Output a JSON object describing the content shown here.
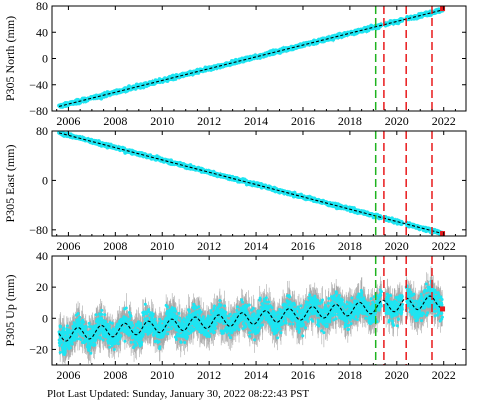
{
  "footer": "Plot Last Updated:   Sunday, January 30, 2022 08:22:43 PST",
  "colors": {
    "data": "#1ee5f2",
    "errorbar": "#a9a9a9",
    "model": "#000000",
    "green_line": "#1fb31f",
    "red_line": "#e8191b",
    "last_point": "#e8191b"
  },
  "chart_data": [
    {
      "type": "scatter",
      "ylabel": "P305 North (mm)",
      "xlim": [
        2005.3,
        2022.95
      ],
      "ylim": [
        -80,
        80
      ],
      "xticks": [
        2006,
        2008,
        2010,
        2012,
        2014,
        2016,
        2018,
        2020,
        2022
      ],
      "yticks": [
        -80,
        -40,
        0,
        40,
        80
      ],
      "trend": {
        "start": [
          2005.6,
          -73
        ],
        "end": [
          2021.95,
          74
        ]
      },
      "noise_mm": 2,
      "last_point": [
        2021.95,
        76
      ],
      "vertical_lines": {
        "green": [
          2019.1
        ],
        "red": [
          2019.45,
          2020.4,
          2021.5
        ]
      }
    },
    {
      "type": "scatter",
      "ylabel": "P305 East (mm)",
      "xlim": [
        2005.3,
        2022.95
      ],
      "ylim": [
        -90,
        80
      ],
      "xticks": [
        2006,
        2008,
        2010,
        2012,
        2014,
        2016,
        2018,
        2020,
        2022
      ],
      "yticks": [
        -80,
        0,
        80
      ],
      "trend": {
        "start": [
          2005.6,
          77
        ],
        "end": [
          2021.95,
          -86
        ]
      },
      "noise_mm": 2,
      "last_point": [
        2021.95,
        -86
      ],
      "vertical_lines": {
        "green": [
          2019.1
        ],
        "red": [
          2019.45,
          2020.4,
          2021.5
        ]
      }
    },
    {
      "type": "scatter",
      "ylabel": "P305 Up (mm)",
      "xlim": [
        2005.3,
        2022.95
      ],
      "ylim": [
        -30,
        40
      ],
      "xticks": [
        2006,
        2008,
        2010,
        2012,
        2014,
        2016,
        2018,
        2020,
        2022
      ],
      "yticks": [
        -20,
        0,
        20,
        40
      ],
      "trend": {
        "start": [
          2005.6,
          -11
        ],
        "end": [
          2021.95,
          11
        ]
      },
      "seasonal_amplitude_mm": 4,
      "noise_mm": 6,
      "last_point": [
        2021.95,
        6
      ],
      "vertical_lines": {
        "green": [
          2019.1
        ],
        "red": [
          2019.45,
          2020.4,
          2021.5
        ]
      }
    }
  ]
}
